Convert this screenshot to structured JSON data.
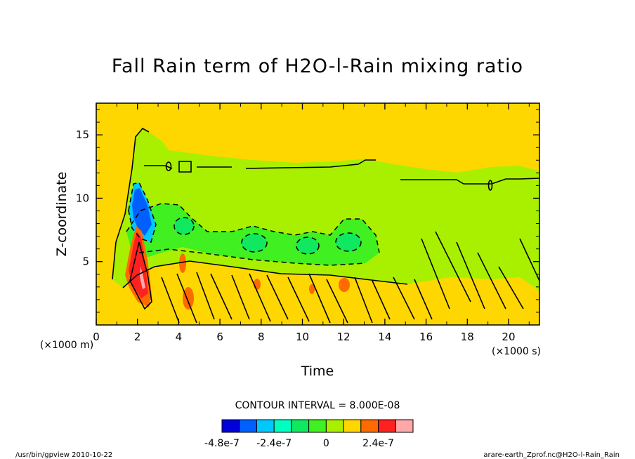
{
  "chart_data": {
    "type": "heatmap",
    "title": "Fall Rain term of H2O-l-Rain mixing ratio",
    "xlabel": "Time",
    "ylabel": "Z-coordinate",
    "x_unit": "(×1000 s)",
    "y_unit": "(×1000 m)",
    "xlim": [
      0,
      21.5
    ],
    "ylim": [
      0,
      17.5
    ],
    "x_ticks": [
      0,
      2,
      4,
      6,
      8,
      10,
      12,
      14,
      16,
      18,
      20
    ],
    "y_ticks": [
      5,
      10,
      15
    ],
    "contour_interval_label": "CONTOUR INTERVAL = 8.000E-08",
    "colorbar_levels": [
      -4.8e-07,
      -4e-07,
      -3.2e-07,
      -2.4e-07,
      -1.6e-07,
      -8e-08,
      0,
      8e-08,
      1.6e-07,
      2.4e-07,
      3.2e-07
    ],
    "colorbar_colors": [
      "#0000d8",
      "#0060ff",
      "#00c8ff",
      "#00ffc0",
      "#10e860",
      "#40f020",
      "#a8f000",
      "#ffd700",
      "#ff6a00",
      "#ff2020",
      "#ffa8a8"
    ],
    "colorbar_labels": [
      {
        "text": "-4.8e-7",
        "value": -4.8e-07
      },
      {
        "text": "-2.4e-7",
        "value": -2.4e-07
      },
      {
        "text": "0",
        "value": 0
      },
      {
        "text": "2.4e-7",
        "value": 2.4e-07
      }
    ],
    "background_color": "#ffd700",
    "regions": [
      {
        "name": "upper-evaporation-layer",
        "level": -4e-08,
        "color": "#a8f000"
      },
      {
        "name": "mid-layer-green",
        "level": -1.2e-07,
        "color": "#40f020"
      },
      {
        "name": "blue-core",
        "level": -4.4e-07,
        "color": "#0060ff"
      },
      {
        "name": "red-core",
        "level": 2.8e-07,
        "color": "#ff2020"
      },
      {
        "name": "orange-patches",
        "level": 2e-07,
        "color": "#ff6a00"
      }
    ]
  },
  "footer": {
    "left": "/usr/bin/gpview  2010-10-22",
    "right": "arare-earth_Zprof.nc@H2O-l-Rain_Rain"
  }
}
